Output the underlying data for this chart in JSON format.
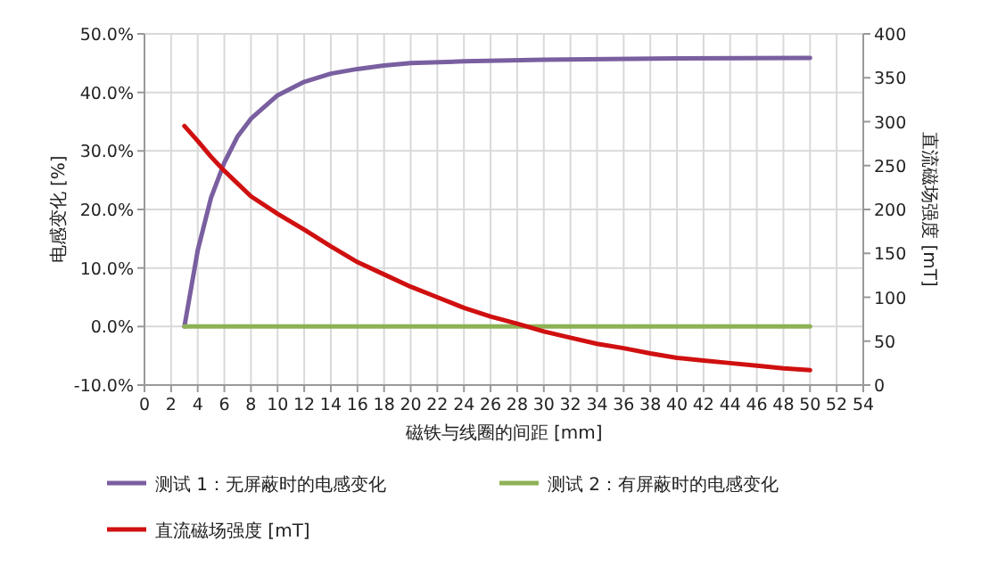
{
  "chart_data": {
    "type": "line",
    "xlabel": "磁铁与线圈的间距 [mm]",
    "ylabel": "电感变化 [%]",
    "y2label": "直流磁场强度 [mT]",
    "xlim": [
      0,
      54
    ],
    "xticks": [
      0,
      2,
      4,
      6,
      8,
      10,
      12,
      14,
      16,
      18,
      20,
      22,
      24,
      26,
      28,
      30,
      32,
      34,
      36,
      38,
      40,
      42,
      44,
      46,
      48,
      50,
      52,
      54
    ],
    "ylim": [
      -10,
      50
    ],
    "yticks": [
      {
        "value": -10,
        "label": "-10.0%"
      },
      {
        "value": 0,
        "label": "0.0%"
      },
      {
        "value": 10,
        "label": "10.0%"
      },
      {
        "value": 20,
        "label": "20.0%"
      },
      {
        "value": 30,
        "label": "30.0%"
      },
      {
        "value": 40,
        "label": "40.0%"
      },
      {
        "value": 50,
        "label": "50.0%"
      }
    ],
    "y2lim": [
      0,
      400
    ],
    "y2ticks": [
      0,
      50,
      100,
      150,
      200,
      250,
      300,
      350,
      400
    ],
    "grid": true,
    "legend": "bottom",
    "marker": "none",
    "line_style": "solid",
    "series": [
      {
        "name": "测试 1：无屏蔽时的电感变化",
        "color": "#7a5fa0",
        "x": [
          3,
          4,
          5,
          6,
          7,
          8,
          10,
          12,
          14,
          16,
          18,
          20,
          24,
          30,
          40,
          50
        ],
        "values": [
          0,
          13,
          22,
          28,
          32.5,
          35.5,
          39.5,
          41.8,
          43.2,
          44,
          44.6,
          45,
          45.3,
          45.6,
          45.8,
          45.9
        ]
      },
      {
        "name": "测试 2：有屏蔽时的电感变化",
        "color": "#8db255",
        "x": [
          3,
          50
        ],
        "values": [
          0,
          0
        ]
      },
      {
        "name": "直流磁场强度 [mT]",
        "color": "#d01010",
        "axis": "y2",
        "x": [
          3,
          4,
          5,
          6,
          8,
          10,
          12,
          14,
          16,
          18,
          20,
          22,
          24,
          26,
          28,
          30,
          32,
          34,
          36,
          38,
          40,
          42,
          44,
          46,
          48,
          50
        ],
        "values": [
          295,
          278,
          260,
          244,
          215,
          195,
          177,
          158,
          140,
          126,
          112,
          100,
          88,
          78,
          70,
          61,
          54,
          47,
          42,
          36,
          31,
          28,
          25,
          22,
          19,
          17
        ]
      }
    ]
  }
}
